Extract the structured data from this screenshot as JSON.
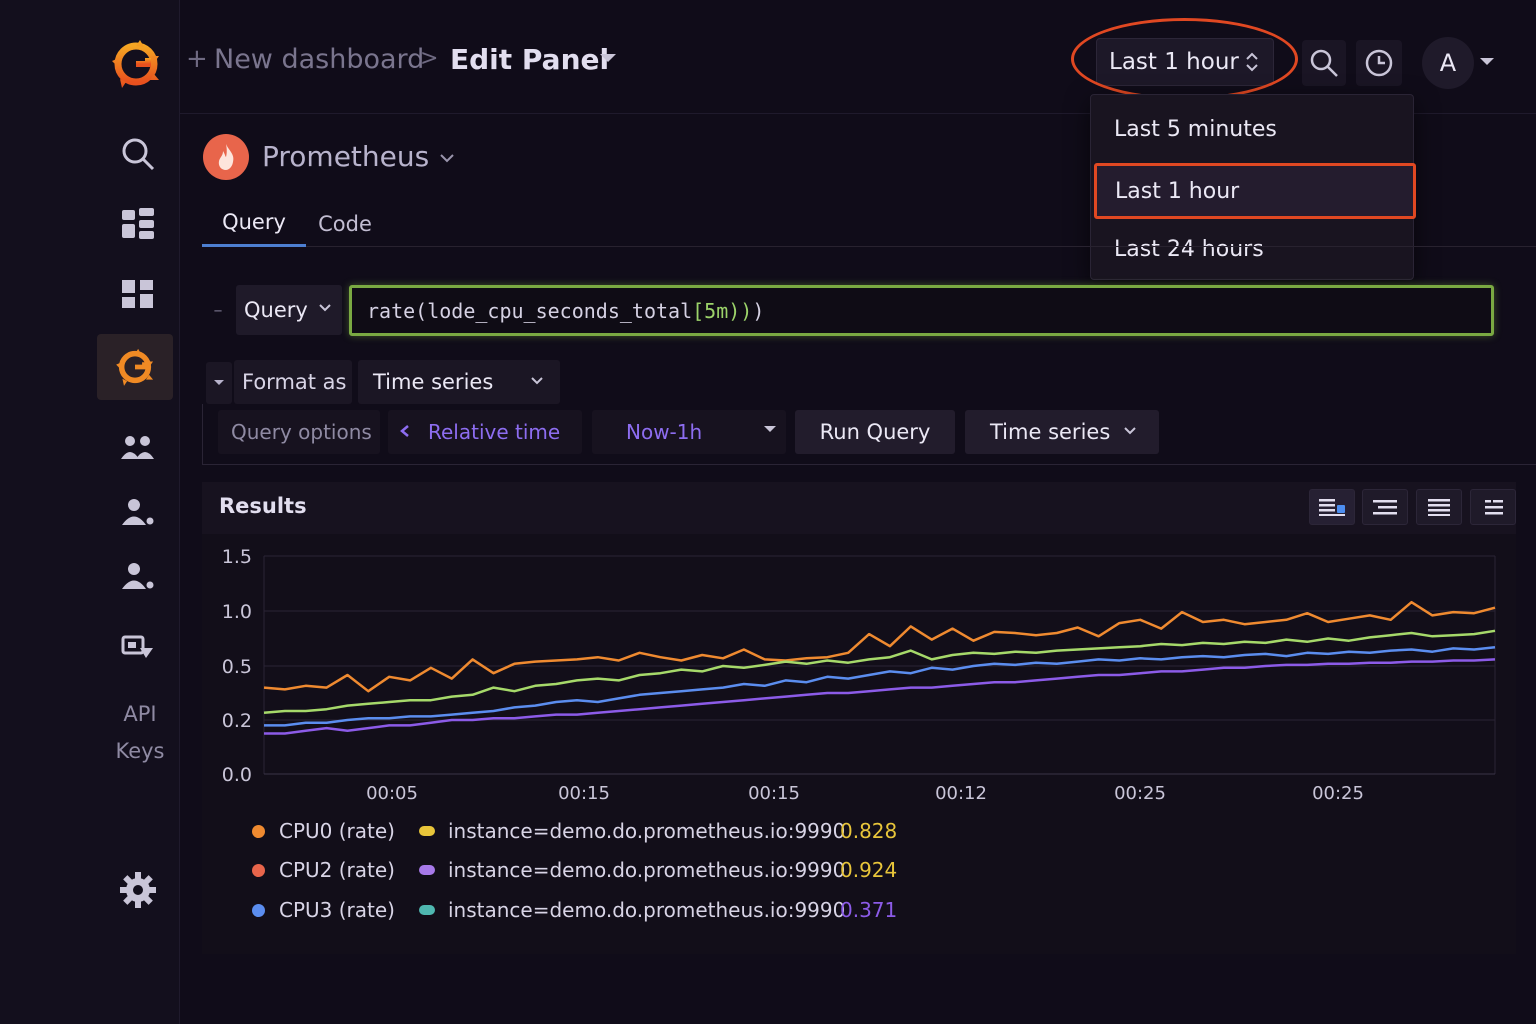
{
  "header": {
    "breadcrumb_plus": "+",
    "breadcrumb_parent": "New dashboard",
    "breadcrumb_sep": ">",
    "breadcrumb_current": "Edit Panel",
    "time_picker_label": "Last 1 hour",
    "avatar_initial": "A"
  },
  "time_menu": {
    "items": [
      "Last 5 minutes",
      "Last 1 hour",
      "Last 24 hours"
    ],
    "selected": "Last 1 hour",
    "highlight_color": "#e04822"
  },
  "sidebar": {
    "items": [
      "search-icon",
      "dashboards-icon",
      "apps-icon",
      "grafana-icon",
      "teams-icon",
      "users-icon",
      "service-accounts-icon",
      "reports-icon"
    ],
    "api_keys_line1": "API",
    "api_keys_line2": "Keys",
    "active_item": "grafana-icon"
  },
  "datasource": {
    "name": "Prometheus",
    "color": "#e8654b"
  },
  "tabs": {
    "query": "Query",
    "code": "Code",
    "active": "Query"
  },
  "query": {
    "type_label": "Query",
    "expr_fn": "rate(lode_cpu_seconds_total",
    "expr_range": "[5m))",
    "expr_tail": ")"
  },
  "format": {
    "label": "Format as",
    "value": "Time series"
  },
  "options": {
    "label": "Query options",
    "relative_label": "Relative time",
    "relative_value": "Now-1h",
    "run_label": "Run Query",
    "viz_label": "Time series"
  },
  "results": {
    "title": "Results"
  },
  "chart_data": {
    "type": "line",
    "y_ticks": [
      "1.5",
      "1.0",
      "0.5",
      "0.2",
      "0.0"
    ],
    "x_ticks": [
      "00:05",
      "00:15",
      "00:15",
      "00:12",
      "00:25",
      "00:25"
    ],
    "grid": true,
    "series": [
      {
        "color": "#ef8a30",
        "values": [
          0.38,
          0.37,
          0.39,
          0.38,
          0.45,
          0.36,
          0.44,
          0.42,
          0.49,
          0.43,
          0.56,
          0.46,
          0.52,
          0.54,
          0.55,
          0.56,
          0.58,
          0.55,
          0.62,
          0.58,
          0.55,
          0.6,
          0.57,
          0.65,
          0.56,
          0.55,
          0.57,
          0.58,
          0.62,
          0.79,
          0.68,
          0.86,
          0.74,
          0.84,
          0.73,
          0.81,
          0.8,
          0.78,
          0.8,
          0.85,
          0.77,
          0.89,
          0.92,
          0.84,
          0.99,
          0.9,
          0.92,
          0.88,
          0.9,
          0.92,
          0.98,
          0.9,
          0.93,
          0.96,
          0.92,
          1.08,
          0.96,
          0.99,
          0.98,
          1.03
        ]
      },
      {
        "color": "#a6d96a",
        "values": [
          0.24,
          0.25,
          0.25,
          0.26,
          0.28,
          0.29,
          0.3,
          0.31,
          0.31,
          0.33,
          0.34,
          0.38,
          0.36,
          0.39,
          0.4,
          0.42,
          0.43,
          0.42,
          0.45,
          0.46,
          0.48,
          0.47,
          0.5,
          0.49,
          0.51,
          0.54,
          0.52,
          0.55,
          0.53,
          0.56,
          0.58,
          0.64,
          0.56,
          0.6,
          0.62,
          0.61,
          0.63,
          0.62,
          0.64,
          0.65,
          0.66,
          0.67,
          0.68,
          0.7,
          0.69,
          0.71,
          0.7,
          0.72,
          0.71,
          0.74,
          0.72,
          0.75,
          0.73,
          0.76,
          0.78,
          0.8,
          0.77,
          0.78,
          0.79,
          0.82
        ]
      },
      {
        "color": "#5b8def",
        "values": [
          0.18,
          0.18,
          0.19,
          0.19,
          0.2,
          0.21,
          0.21,
          0.22,
          0.22,
          0.23,
          0.24,
          0.25,
          0.27,
          0.28,
          0.3,
          0.31,
          0.3,
          0.32,
          0.34,
          0.35,
          0.36,
          0.37,
          0.38,
          0.4,
          0.39,
          0.42,
          0.41,
          0.44,
          0.43,
          0.45,
          0.47,
          0.46,
          0.49,
          0.48,
          0.5,
          0.52,
          0.51,
          0.53,
          0.52,
          0.54,
          0.56,
          0.55,
          0.57,
          0.56,
          0.58,
          0.59,
          0.58,
          0.6,
          0.61,
          0.59,
          0.62,
          0.61,
          0.63,
          0.62,
          0.64,
          0.65,
          0.63,
          0.66,
          0.65,
          0.67
        ]
      },
      {
        "color": "#8c5be8",
        "values": [
          0.15,
          0.15,
          0.16,
          0.17,
          0.16,
          0.17,
          0.18,
          0.18,
          0.19,
          0.2,
          0.2,
          0.21,
          0.21,
          0.22,
          0.23,
          0.23,
          0.24,
          0.25,
          0.26,
          0.27,
          0.28,
          0.29,
          0.3,
          0.31,
          0.32,
          0.33,
          0.34,
          0.35,
          0.35,
          0.36,
          0.37,
          0.38,
          0.38,
          0.39,
          0.4,
          0.41,
          0.41,
          0.42,
          0.43,
          0.44,
          0.45,
          0.45,
          0.46,
          0.47,
          0.47,
          0.48,
          0.49,
          0.49,
          0.5,
          0.51,
          0.51,
          0.52,
          0.52,
          0.53,
          0.53,
          0.54,
          0.54,
          0.55,
          0.55,
          0.56
        ]
      }
    ]
  },
  "legend": [
    {
      "name": "CPU0 (rate)",
      "dot_color": "#ef8a30",
      "pill_color": "#e8c53a",
      "instance": "instance=demo.do.prometheus.io:9990",
      "value": "0.828",
      "value_color": "#e8c53a"
    },
    {
      "name": "CPU2 (rate)",
      "dot_color": "#e8654b",
      "pill_color": "#a779e9",
      "instance": "instance=demo.do.prometheus.io:9990",
      "value": "0.924",
      "value_color": "#e8c53a"
    },
    {
      "name": "CPU3 (rate)",
      "dot_color": "#5b8def",
      "pill_color": "#4fb7b0",
      "instance": "instance=demo.do.prometheus.io:9990",
      "value": "0.371",
      "value_color": "#8c5be8"
    }
  ]
}
